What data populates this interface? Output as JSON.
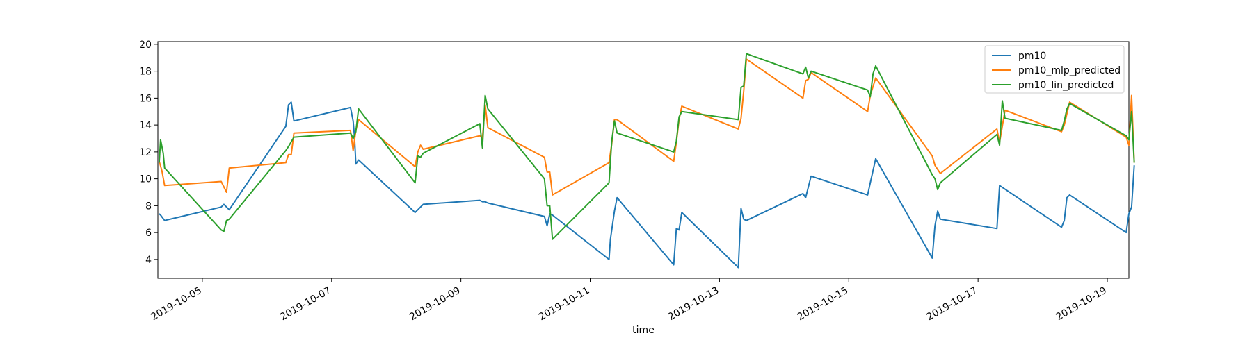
{
  "colors": {
    "pm10": "#1f77b4",
    "mlp": "#ff7f0e",
    "lin": "#2ca02c"
  },
  "chart_data": {
    "type": "line",
    "title": "",
    "xlabel": "time",
    "ylabel": "",
    "x_ticks": [
      "2019-10-05",
      "2019-10-07",
      "2019-10-09",
      "2019-10-11",
      "2019-10-13",
      "2019-10-15",
      "2019-10-17",
      "2019-10-19"
    ],
    "y_ticks": [
      4,
      6,
      8,
      10,
      12,
      14,
      16,
      18,
      20
    ],
    "xlim": [
      "2019-10-04 07:30",
      "2019-10-19 08:00"
    ],
    "ylim": [
      2.6,
      20.2
    ],
    "legend_position": "top-right",
    "grid": false,
    "series": [
      {
        "name": "pm10",
        "color": "#1f77b4",
        "points": [
          [
            "2019-10-04 08:00",
            7.4
          ],
          [
            "2019-10-04 08:30",
            7.3
          ],
          [
            "2019-10-04 10:00",
            6.9
          ],
          [
            "2019-10-05 07:00",
            7.9
          ],
          [
            "2019-10-05 08:00",
            8.1
          ],
          [
            "2019-10-05 10:00",
            7.7
          ],
          [
            "2019-10-06 07:00",
            13.9
          ],
          [
            "2019-10-06 08:00",
            15.5
          ],
          [
            "2019-10-06 09:00",
            15.7
          ],
          [
            "2019-10-06 10:00",
            14.3
          ],
          [
            "2019-10-07 07:00",
            15.3
          ],
          [
            "2019-10-07 08:00",
            14.3
          ],
          [
            "2019-10-07 08:30",
            13.1
          ],
          [
            "2019-10-07 09:00",
            11.1
          ],
          [
            "2019-10-07 10:00",
            11.4
          ],
          [
            "2019-10-08 07:00",
            7.5
          ],
          [
            "2019-10-08 08:00",
            7.7
          ],
          [
            "2019-10-08 10:00",
            8.1
          ],
          [
            "2019-10-09 07:00",
            8.4
          ],
          [
            "2019-10-09 08:00",
            8.3
          ],
          [
            "2019-10-09 09:00",
            8.3
          ],
          [
            "2019-10-09 10:00",
            8.2
          ],
          [
            "2019-10-10 07:00",
            7.2
          ],
          [
            "2019-10-10 08:00",
            6.5
          ],
          [
            "2019-10-10 09:00",
            7.4
          ],
          [
            "2019-10-10 10:00",
            7.3
          ],
          [
            "2019-10-11 07:00",
            4.0
          ],
          [
            "2019-10-11 07:30",
            5.5
          ],
          [
            "2019-10-11 09:00",
            7.6
          ],
          [
            "2019-10-11 10:00",
            8.6
          ],
          [
            "2019-10-12 07:00",
            3.6
          ],
          [
            "2019-10-12 08:00",
            6.3
          ],
          [
            "2019-10-12 09:00",
            6.2
          ],
          [
            "2019-10-12 10:00",
            7.5
          ],
          [
            "2019-10-13 07:00",
            3.4
          ],
          [
            "2019-10-13 08:00",
            7.8
          ],
          [
            "2019-10-13 09:00",
            7.0
          ],
          [
            "2019-10-13 10:00",
            6.9
          ],
          [
            "2019-10-14 07:00",
            8.9
          ],
          [
            "2019-10-14 08:00",
            8.6
          ],
          [
            "2019-10-14 10:00",
            10.2
          ],
          [
            "2019-10-15 07:00",
            8.8
          ],
          [
            "2019-10-15 08:00",
            9.7
          ],
          [
            "2019-10-15 10:00",
            11.5
          ],
          [
            "2019-10-16 07:00",
            4.1
          ],
          [
            "2019-10-16 08:00",
            6.5
          ],
          [
            "2019-10-16 09:00",
            7.6
          ],
          [
            "2019-10-16 10:00",
            7.0
          ],
          [
            "2019-10-17 07:00",
            6.3
          ],
          [
            "2019-10-17 08:00",
            9.5
          ],
          [
            "2019-10-18 07:00",
            6.4
          ],
          [
            "2019-10-18 08:00",
            6.9
          ],
          [
            "2019-10-18 09:00",
            8.6
          ],
          [
            "2019-10-18 10:00",
            8.8
          ],
          [
            "2019-10-19 07:00",
            6.0
          ],
          [
            "2019-10-19 08:00",
            7.4
          ],
          [
            "2019-10-19 09:00",
            7.9
          ],
          [
            "2019-10-19 10:00",
            11.0
          ]
        ]
      },
      {
        "name": "pm10_mlp_predicted",
        "color": "#ff7f0e",
        "points": [
          [
            "2019-10-04 08:00",
            11.3
          ],
          [
            "2019-10-04 09:00",
            10.6
          ],
          [
            "2019-10-04 10:00",
            9.5
          ],
          [
            "2019-10-05 07:00",
            9.8
          ],
          [
            "2019-10-05 09:00",
            9.0
          ],
          [
            "2019-10-05 10:00",
            10.8
          ],
          [
            "2019-10-06 07:00",
            11.2
          ],
          [
            "2019-10-06 08:00",
            11.8
          ],
          [
            "2019-10-06 09:00",
            11.8
          ],
          [
            "2019-10-06 10:00",
            13.4
          ],
          [
            "2019-10-07 07:00",
            13.6
          ],
          [
            "2019-10-07 08:00",
            12.1
          ],
          [
            "2019-10-07 09:00",
            13.6
          ],
          [
            "2019-10-07 10:00",
            14.4
          ],
          [
            "2019-10-08 07:00",
            10.9
          ],
          [
            "2019-10-08 08:00",
            12.0
          ],
          [
            "2019-10-08 09:00",
            12.5
          ],
          [
            "2019-10-08 10:00",
            12.2
          ],
          [
            "2019-10-09 07:00",
            13.2
          ],
          [
            "2019-10-09 08:00",
            13.0
          ],
          [
            "2019-10-09 09:00",
            15.5
          ],
          [
            "2019-10-09 10:00",
            13.8
          ],
          [
            "2019-10-10 07:00",
            11.6
          ],
          [
            "2019-10-10 08:00",
            10.5
          ],
          [
            "2019-10-10 09:00",
            10.5
          ],
          [
            "2019-10-10 10:00",
            8.8
          ],
          [
            "2019-10-11 07:00",
            11.2
          ],
          [
            "2019-10-11 08:00",
            12.6
          ],
          [
            "2019-10-11 09:00",
            14.4
          ],
          [
            "2019-10-11 10:00",
            14.4
          ],
          [
            "2019-10-12 07:00",
            11.3
          ],
          [
            "2019-10-12 08:00",
            12.7
          ],
          [
            "2019-10-12 09:00",
            14.4
          ],
          [
            "2019-10-12 10:00",
            15.4
          ],
          [
            "2019-10-13 07:00",
            13.7
          ],
          [
            "2019-10-13 08:00",
            14.5
          ],
          [
            "2019-10-13 09:00",
            16.5
          ],
          [
            "2019-10-13 10:00",
            18.9
          ],
          [
            "2019-10-14 07:00",
            16.0
          ],
          [
            "2019-10-14 08:00",
            17.3
          ],
          [
            "2019-10-14 09:00",
            17.4
          ],
          [
            "2019-10-14 10:00",
            17.9
          ],
          [
            "2019-10-15 07:00",
            15.0
          ],
          [
            "2019-10-15 08:00",
            16.2
          ],
          [
            "2019-10-15 10:00",
            17.5
          ],
          [
            "2019-10-16 07:00",
            11.7
          ],
          [
            "2019-10-16 08:00",
            11.0
          ],
          [
            "2019-10-16 10:00",
            10.4
          ],
          [
            "2019-10-17 07:00",
            13.7
          ],
          [
            "2019-10-17 08:00",
            12.7
          ],
          [
            "2019-10-17 10:00",
            15.1
          ],
          [
            "2019-10-18 07:00",
            13.5
          ],
          [
            "2019-10-18 08:00",
            14.0
          ],
          [
            "2019-10-18 10:00",
            15.7
          ],
          [
            "2019-10-19 07:00",
            13.1
          ],
          [
            "2019-10-19 08:00",
            12.5
          ],
          [
            "2019-10-19 09:00",
            16.2
          ],
          [
            "2019-10-19 10:00",
            11.2
          ]
        ]
      },
      {
        "name": "pm10_lin_predicted",
        "color": "#2ca02c",
        "points": [
          [
            "2019-10-04 08:00",
            11.2
          ],
          [
            "2019-10-04 08:30",
            12.9
          ],
          [
            "2019-10-04 09:30",
            11.9
          ],
          [
            "2019-10-04 10:00",
            10.8
          ],
          [
            "2019-10-05 07:00",
            6.2
          ],
          [
            "2019-10-05 08:00",
            6.1
          ],
          [
            "2019-10-05 09:00",
            6.9
          ],
          [
            "2019-10-05 10:00",
            7.0
          ],
          [
            "2019-10-06 07:00",
            12.1
          ],
          [
            "2019-10-06 08:00",
            12.4
          ],
          [
            "2019-10-06 10:00",
            13.1
          ],
          [
            "2019-10-07 07:00",
            13.4
          ],
          [
            "2019-10-07 08:00",
            13.0
          ],
          [
            "2019-10-07 09:00",
            13.5
          ],
          [
            "2019-10-07 10:00",
            15.2
          ],
          [
            "2019-10-08 07:00",
            9.7
          ],
          [
            "2019-10-08 08:00",
            11.7
          ],
          [
            "2019-10-08 09:00",
            11.6
          ],
          [
            "2019-10-08 10:00",
            11.9
          ],
          [
            "2019-10-09 07:00",
            14.1
          ],
          [
            "2019-10-09 08:00",
            12.3
          ],
          [
            "2019-10-09 09:00",
            16.2
          ],
          [
            "2019-10-09 10:00",
            15.2
          ],
          [
            "2019-10-10 07:00",
            10.0
          ],
          [
            "2019-10-10 08:00",
            8.0
          ],
          [
            "2019-10-10 09:00",
            8.0
          ],
          [
            "2019-10-10 10:00",
            5.5
          ],
          [
            "2019-10-11 07:00",
            9.7
          ],
          [
            "2019-10-11 08:00",
            12.8
          ],
          [
            "2019-10-11 09:00",
            14.3
          ],
          [
            "2019-10-11 10:00",
            13.4
          ],
          [
            "2019-10-12 07:00",
            12.0
          ],
          [
            "2019-10-12 08:00",
            12.8
          ],
          [
            "2019-10-12 09:00",
            14.6
          ],
          [
            "2019-10-12 10:00",
            15.0
          ],
          [
            "2019-10-13 07:00",
            14.4
          ],
          [
            "2019-10-13 08:00",
            16.8
          ],
          [
            "2019-10-13 09:00",
            16.9
          ],
          [
            "2019-10-13 10:00",
            19.3
          ],
          [
            "2019-10-14 07:00",
            17.8
          ],
          [
            "2019-10-14 08:00",
            18.3
          ],
          [
            "2019-10-14 09:00",
            17.5
          ],
          [
            "2019-10-14 10:00",
            18.0
          ],
          [
            "2019-10-15 07:00",
            16.6
          ],
          [
            "2019-10-15 08:00",
            16.1
          ],
          [
            "2019-10-15 09:00",
            17.8
          ],
          [
            "2019-10-15 10:00",
            18.4
          ],
          [
            "2019-10-16 07:00",
            10.3
          ],
          [
            "2019-10-16 08:00",
            10.0
          ],
          [
            "2019-10-16 09:00",
            9.2
          ],
          [
            "2019-10-16 10:00",
            9.7
          ],
          [
            "2019-10-17 07:00",
            13.3
          ],
          [
            "2019-10-17 08:00",
            12.5
          ],
          [
            "2019-10-17 09:00",
            15.8
          ],
          [
            "2019-10-17 10:00",
            14.5
          ],
          [
            "2019-10-18 07:00",
            13.6
          ],
          [
            "2019-10-18 08:00",
            14.3
          ],
          [
            "2019-10-18 09:00",
            15.2
          ],
          [
            "2019-10-18 10:00",
            15.6
          ],
          [
            "2019-10-19 07:00",
            13.2
          ],
          [
            "2019-10-19 08:00",
            12.9
          ],
          [
            "2019-10-19 09:00",
            15.0
          ],
          [
            "2019-10-19 10:00",
            11.2
          ]
        ]
      }
    ]
  }
}
